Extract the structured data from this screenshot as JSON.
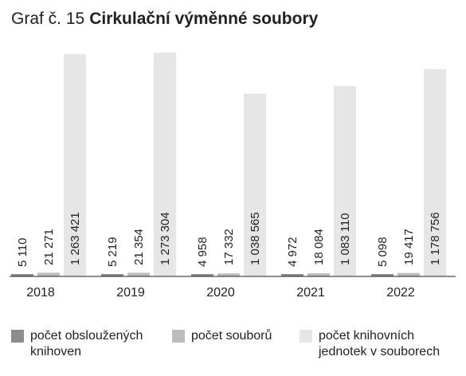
{
  "title": {
    "prefix": "Graf č. 15",
    "main": "Cirkulační výměnné soubory"
  },
  "colors": {
    "s1": "#8c8c8c",
    "s2": "#bdbdbd",
    "s3": "#e6e6e6",
    "axis": "#231f20",
    "text": "#231f20"
  },
  "chart_data": {
    "type": "bar",
    "title": "Cirkulační výměnné soubory",
    "categories": [
      "2018",
      "2019",
      "2020",
      "2021",
      "2022"
    ],
    "series": [
      {
        "name": "počet obsloužených knihoven",
        "values": [
          5110,
          5219,
          4958,
          4972,
          5098
        ],
        "labels": [
          "5 110",
          "5 219",
          "4 958",
          "4 972",
          "5 098"
        ]
      },
      {
        "name": "počet souborů",
        "values": [
          21271,
          21354,
          17332,
          18084,
          19417
        ],
        "labels": [
          "21 271",
          "21 354",
          "17 332",
          "18 084",
          "19 417"
        ]
      },
      {
        "name": "počet knihovních jednotek v souborech",
        "values": [
          1263421,
          1273304,
          1038565,
          1083110,
          1178756
        ],
        "labels": [
          "1 263 421",
          "1 273 304",
          "1 038 565",
          "1 083 110",
          "1 178 756"
        ]
      }
    ],
    "ylim": [
      0,
      1300000
    ],
    "grid": false,
    "legend_position": "bottom"
  },
  "legend": [
    {
      "label": "počet obsloužených knihoven"
    },
    {
      "label": "počet souborů"
    },
    {
      "label": "počet knihovních jednotek v souborech"
    }
  ]
}
